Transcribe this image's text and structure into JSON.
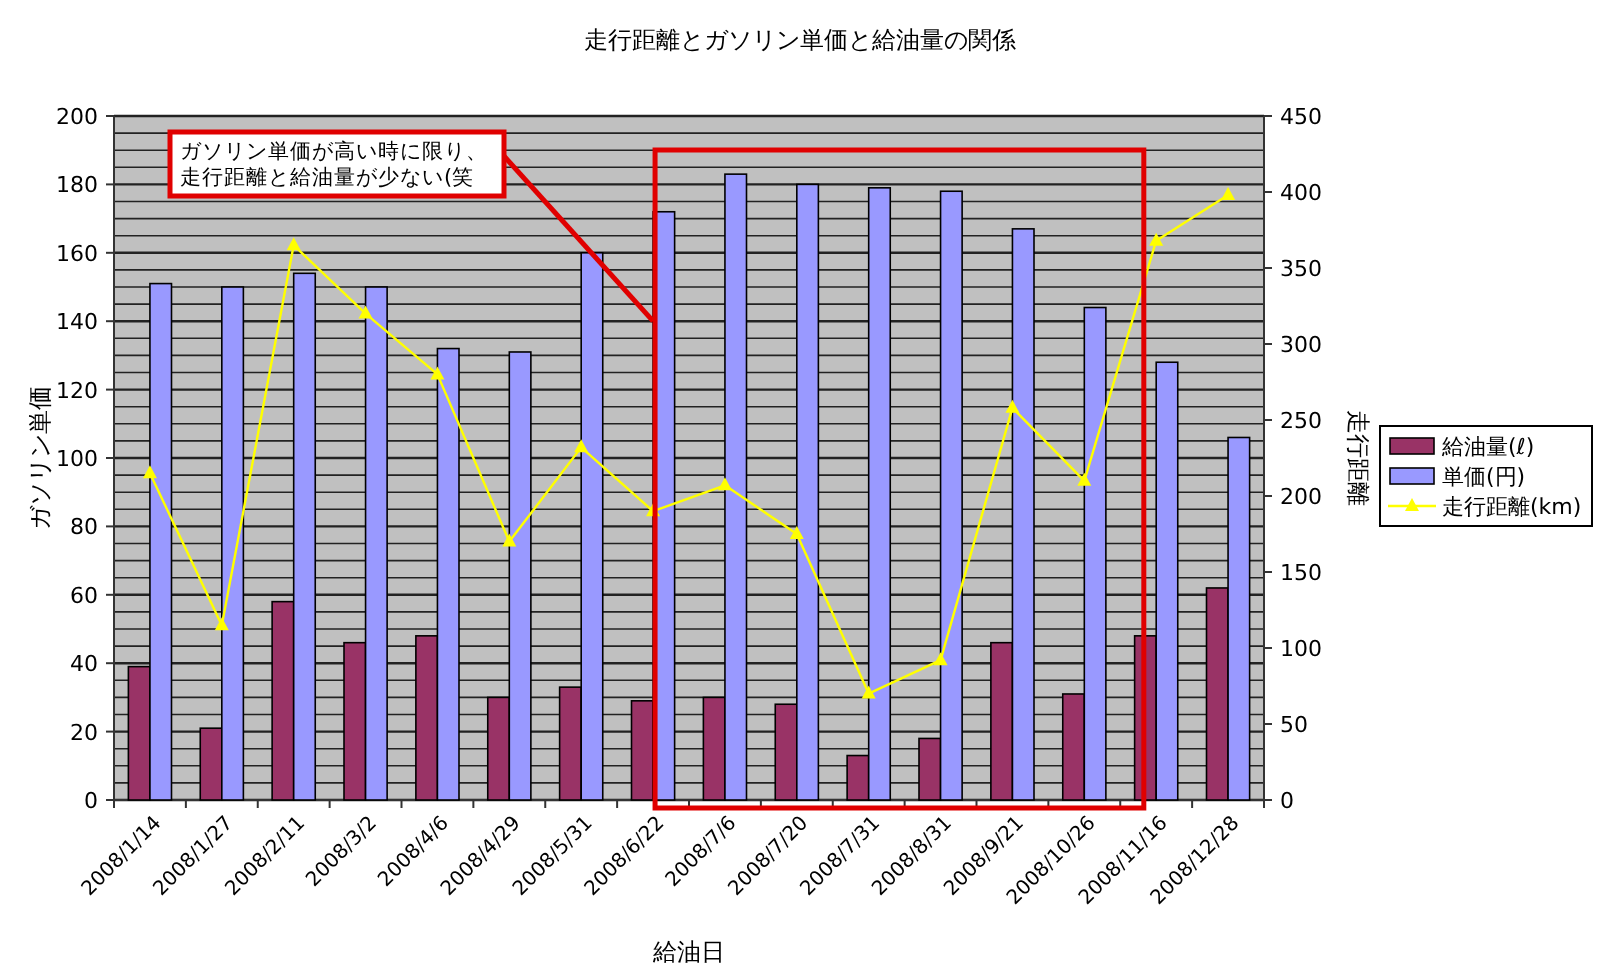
{
  "chart_data": {
    "type": "bar",
    "title": "走行距離とガソリン単価と給油量の関係",
    "xlabel": "給油日",
    "ylabel": "ガソリン単価",
    "y2label": "走行距離",
    "categories": [
      "2008/1/14",
      "2008/1/27",
      "2008/2/11",
      "2008/3/2",
      "2008/4/6",
      "2008/4/29",
      "2008/5/31",
      "2008/6/22",
      "2008/7/6",
      "2008/7/20",
      "2008/7/31",
      "2008/8/31",
      "2008/9/21",
      "2008/10/26",
      "2008/11/16",
      "2008/12/28"
    ],
    "series": [
      {
        "name": "給油量(ℓ)",
        "color": "#993366",
        "values": [
          39,
          21,
          58,
          46,
          48,
          30,
          33,
          29,
          30,
          28,
          13,
          18,
          46,
          31,
          48,
          62
        ]
      },
      {
        "name": "単価(円)",
        "color": "#9999ff",
        "values": [
          151,
          150,
          154,
          150,
          132,
          131,
          160,
          172,
          183,
          180,
          179,
          178,
          167,
          144,
          128,
          106
        ]
      },
      {
        "name": "走行距離(km)",
        "type": "line",
        "axis": "y2",
        "color": "#ffff00",
        "marker": "triangle",
        "line_style": "solid",
        "values": [
          215,
          115,
          365,
          320,
          280,
          170,
          232,
          190,
          207,
          175,
          70,
          92,
          258,
          210,
          368,
          398
        ]
      }
    ],
    "ylim": [
      0,
      200
    ],
    "yticks": [
      0,
      20,
      40,
      60,
      80,
      100,
      120,
      140,
      160,
      180,
      200
    ],
    "y2lim": [
      0,
      450
    ],
    "y2ticks": [
      0,
      50,
      100,
      150,
      200,
      250,
      300,
      350,
      400,
      450
    ],
    "grid": "y",
    "legend": "right",
    "annotations": [
      {
        "text": "ガソリン単価が高い時に限り、走行距離と給油量が少ない(笑",
        "x": "2008/6/22",
        "y": 140
      }
    ]
  }
}
